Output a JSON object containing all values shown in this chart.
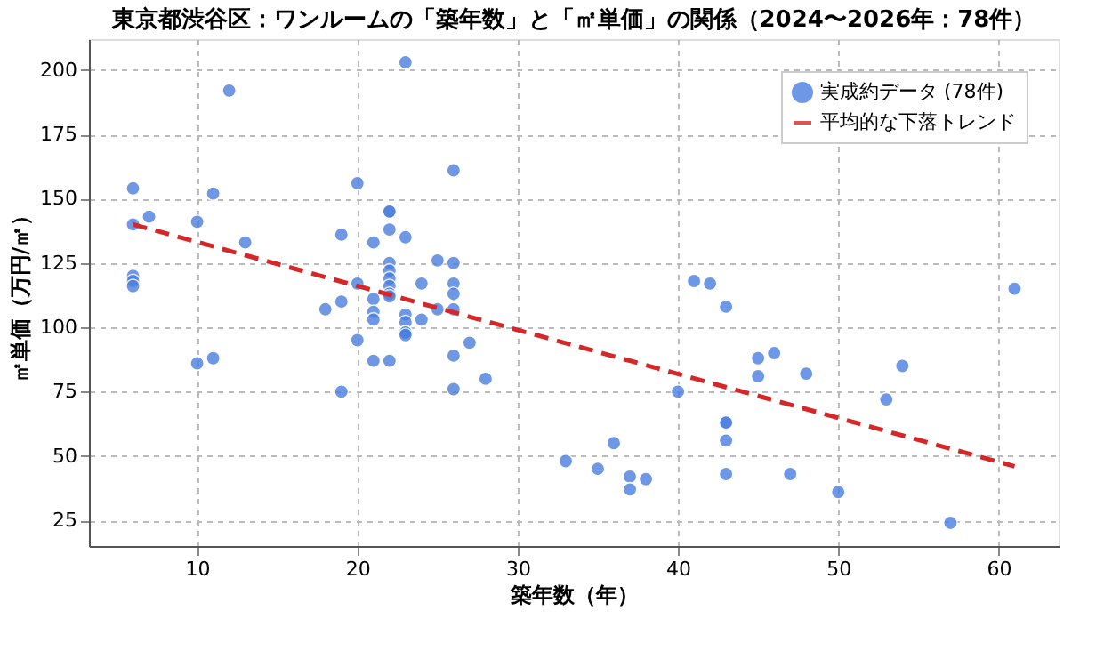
{
  "chart_data": {
    "type": "scatter",
    "title": "東京都渋谷区：ワンルームの「築年数」と「㎡単価」の関係（2024〜2026年：78件）",
    "xlabel": "築年数（年）",
    "ylabel": "㎡単価（万円/㎡）",
    "xlim": [
      3.25,
      63.75
    ],
    "ylim": [
      15,
      212
    ],
    "xticks": [
      10,
      20,
      30,
      40,
      50,
      60
    ],
    "yticks": [
      25,
      50,
      75,
      100,
      125,
      150,
      175,
      200
    ],
    "grid": true,
    "legend": "top right",
    "series": [
      {
        "name": "実成約データ (78件)",
        "marker": "circle",
        "color": "#4a7fe0",
        "x": [
          6,
          6,
          6,
          6,
          6,
          7,
          10,
          10,
          11,
          11,
          12,
          13,
          18,
          19,
          19,
          19,
          20,
          20,
          20,
          21,
          21,
          21,
          21,
          21,
          22,
          22,
          22,
          22,
          22,
          22,
          22,
          22,
          22,
          23,
          23,
          23,
          23,
          23,
          23,
          23,
          24,
          24,
          25,
          25,
          26,
          26,
          26,
          26,
          26,
          26,
          26,
          27,
          28,
          33,
          35,
          36,
          37,
          37,
          38,
          40,
          41,
          42,
          43,
          43,
          43,
          43,
          43,
          45,
          45,
          46,
          47,
          48,
          50,
          53,
          54,
          57,
          61,
          22
        ],
        "values": [
          154,
          140,
          120,
          118,
          116,
          143,
          141,
          86,
          152,
          88,
          192,
          133,
          107,
          136,
          110,
          75,
          156,
          117,
          95,
          133,
          111,
          106,
          103,
          87,
          145,
          145,
          138,
          125,
          122,
          119,
          116,
          113,
          87,
          203,
          135,
          105,
          102,
          98,
          98,
          97,
          117,
          103,
          126,
          107,
          161,
          125,
          117,
          113,
          107,
          89,
          76,
          94,
          80,
          48,
          45,
          55,
          42,
          37,
          41,
          75,
          118,
          117,
          108,
          63,
          63,
          56,
          43,
          88,
          81,
          90,
          43,
          82,
          36,
          72,
          85,
          24,
          115,
          112
        ]
      },
      {
        "name": "平均的な下落トレンド",
        "type": "line",
        "color": "#d62728",
        "line_style": "dashed",
        "x": [
          6,
          61
        ],
        "values": [
          140,
          46
        ]
      }
    ]
  }
}
